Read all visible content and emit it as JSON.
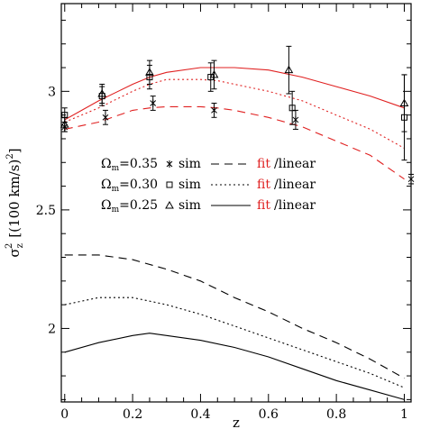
{
  "chart_data": {
    "type": "line",
    "title": "",
    "xlabel": "z",
    "ylabel": "σ²_z [(100 km/s)²]",
    "ylabel_main": "σ",
    "ylabel_sub": "z",
    "ylabel_sup": "2",
    "ylabel_tail": "[(100 km/s)",
    "ylabel_close": "]",
    "xlim": [
      -0.01,
      1.02
    ],
    "ylim": [
      1.69,
      3.37
    ],
    "xticks": [
      0,
      0.2,
      0.4,
      0.6,
      0.8,
      1
    ],
    "xtick_labels": [
      "0",
      "0.2",
      "0.4",
      "0.6",
      "0.8",
      "1"
    ],
    "yticks": [
      2,
      2.5,
      3
    ],
    "ytick_labels": [
      "2",
      "2.5",
      "3"
    ],
    "fit_color": "#e02020",
    "linear_color": "#000000",
    "series": [
      {
        "omega": "0.35",
        "marker": "star",
        "dash": "9 6",
        "fit": {
          "x": [
            0,
            0.1,
            0.2,
            0.25,
            0.3,
            0.4,
            0.45,
            0.5,
            0.6,
            0.7,
            0.8,
            0.9,
            1.0
          ],
          "y": [
            2.84,
            2.87,
            2.92,
            2.93,
            2.935,
            2.935,
            2.93,
            2.92,
            2.89,
            2.85,
            2.79,
            2.73,
            2.63
          ]
        },
        "linear": {
          "x": [
            0,
            0.1,
            0.2,
            0.3,
            0.4,
            0.5,
            0.6,
            0.7,
            0.8,
            0.9,
            1.0
          ],
          "y": [
            2.31,
            2.31,
            2.29,
            2.25,
            2.2,
            2.13,
            2.07,
            2.0,
            1.94,
            1.87,
            1.79
          ]
        },
        "points": {
          "x": [
            0.0,
            0.12,
            0.26,
            0.44,
            0.68,
            1.02
          ],
          "y": [
            2.85,
            2.89,
            2.95,
            2.92,
            2.88,
            2.63
          ],
          "err": [
            0.02,
            0.03,
            0.03,
            0.03,
            0.04,
            0.02
          ]
        }
      },
      {
        "omega": "0.30",
        "marker": "square",
        "dash": "2 3",
        "fit": {
          "x": [
            0,
            0.1,
            0.2,
            0.25,
            0.3,
            0.4,
            0.45,
            0.5,
            0.6,
            0.7,
            0.8,
            0.9,
            1.0
          ],
          "y": [
            2.87,
            2.93,
            3.0,
            3.03,
            3.05,
            3.05,
            3.045,
            3.03,
            3.0,
            2.96,
            2.9,
            2.84,
            2.76
          ]
        },
        "linear": {
          "x": [
            0,
            0.1,
            0.2,
            0.3,
            0.4,
            0.5,
            0.6,
            0.7,
            0.8,
            0.9,
            1.0
          ],
          "y": [
            2.1,
            2.13,
            2.13,
            2.1,
            2.06,
            2.01,
            1.96,
            1.91,
            1.86,
            1.81,
            1.75
          ]
        },
        "points": {
          "x": [
            0.0,
            0.11,
            0.25,
            0.43,
            0.67,
            1.0
          ],
          "y": [
            2.9,
            2.98,
            3.06,
            3.06,
            2.93,
            2.89
          ],
          "err": [
            0.03,
            0.04,
            0.05,
            0.06,
            0.07,
            0.18
          ]
        }
      },
      {
        "omega": "0.25",
        "marker": "triangle",
        "dash": "",
        "fit": {
          "x": [
            0,
            0.1,
            0.2,
            0.25,
            0.3,
            0.4,
            0.45,
            0.5,
            0.6,
            0.7,
            0.8,
            0.9,
            1.0
          ],
          "y": [
            2.88,
            2.96,
            3.03,
            3.06,
            3.08,
            3.1,
            3.1,
            3.1,
            3.09,
            3.06,
            3.02,
            2.98,
            2.93
          ]
        },
        "linear": {
          "x": [
            0,
            0.1,
            0.2,
            0.25,
            0.3,
            0.4,
            0.5,
            0.6,
            0.7,
            0.8,
            0.9,
            1.0
          ],
          "y": [
            1.9,
            1.94,
            1.97,
            1.98,
            1.97,
            1.95,
            1.92,
            1.88,
            1.83,
            1.78,
            1.74,
            1.7
          ]
        },
        "points": {
          "x": [
            0.0,
            0.11,
            0.25,
            0.44,
            0.66,
            1.0
          ],
          "y": [
            2.86,
            2.99,
            3.08,
            3.07,
            3.09,
            2.95
          ],
          "err": [
            0.03,
            0.04,
            0.05,
            0.06,
            0.1,
            0.12
          ]
        }
      }
    ],
    "legend": {
      "prefix": "Ω",
      "prefix_sub": "m",
      "equals": "=",
      "sim": "sim",
      "fit": "fit",
      "slash": "/",
      "linear": "linear"
    }
  }
}
